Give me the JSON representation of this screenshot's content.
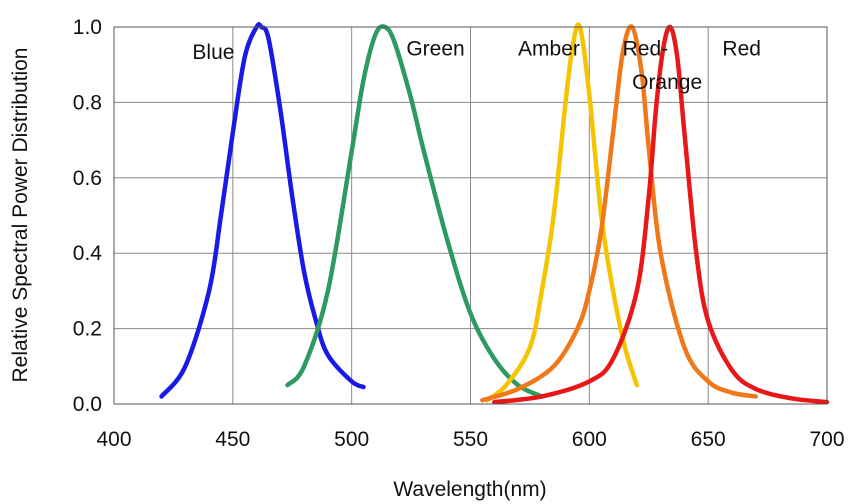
{
  "chart_data": {
    "type": "line",
    "title": "",
    "xlabel": "Wavelength(nm)",
    "ylabel": "Relative Spectral Power Distribution",
    "xlim": [
      400,
      700
    ],
    "ylim": [
      0,
      1.0
    ],
    "grid": true,
    "x_ticks": [
      400,
      450,
      500,
      550,
      600,
      650,
      700
    ],
    "x_tick_labels": [
      "400",
      "450",
      "500",
      "550",
      "600",
      "650",
      "700"
    ],
    "y_ticks": [
      0.0,
      0.2,
      0.4,
      0.6,
      0.8,
      1.0
    ],
    "y_tick_labels": [
      "0.0",
      "0.2",
      "0.4",
      "0.6",
      "0.8",
      "1.0"
    ],
    "series": [
      {
        "name": "Blue",
        "color": "#1a1ae6",
        "x": [
          420,
          430,
          440,
          445,
          450,
          455,
          460,
          462,
          465,
          470,
          475,
          480,
          485,
          490,
          500,
          505
        ],
        "y": [
          0.02,
          0.1,
          0.3,
          0.5,
          0.72,
          0.92,
          1.0,
          1.0,
          0.97,
          0.78,
          0.55,
          0.35,
          0.22,
          0.13,
          0.06,
          0.045
        ]
      },
      {
        "name": "Green",
        "color": "#2e9a62",
        "x": [
          473,
          480,
          490,
          500,
          505,
          510,
          514,
          518,
          525,
          530,
          540,
          550,
          560,
          570,
          580
        ],
        "y": [
          0.05,
          0.1,
          0.3,
          0.67,
          0.86,
          0.98,
          1.0,
          0.96,
          0.81,
          0.68,
          0.44,
          0.24,
          0.12,
          0.05,
          0.02
        ]
      },
      {
        "name": "Amber",
        "color": "#f5c400",
        "x": [
          557,
          565,
          575,
          580,
          585,
          590,
          593,
          596,
          600,
          605,
          610,
          615,
          620
        ],
        "y": [
          0.01,
          0.05,
          0.15,
          0.3,
          0.5,
          0.8,
          0.95,
          1.0,
          0.82,
          0.5,
          0.3,
          0.15,
          0.05
        ]
      },
      {
        "name": "Red-Orange",
        "color": "#f07818",
        "x": [
          555,
          570,
          585,
          595,
          600,
          605,
          610,
          614,
          618,
          622,
          625,
          630,
          640,
          650,
          660,
          670
        ],
        "y": [
          0.01,
          0.04,
          0.1,
          0.2,
          0.3,
          0.46,
          0.72,
          0.93,
          1.0,
          0.88,
          0.68,
          0.4,
          0.15,
          0.06,
          0.03,
          0.02
        ]
      },
      {
        "name": "Red",
        "color": "#e81818",
        "x": [
          560,
          580,
          600,
          610,
          620,
          625,
          628,
          631,
          634,
          637,
          640,
          645,
          650,
          660,
          670,
          685,
          700
        ],
        "y": [
          0.005,
          0.02,
          0.06,
          0.12,
          0.3,
          0.55,
          0.78,
          0.94,
          1.0,
          0.92,
          0.72,
          0.4,
          0.22,
          0.09,
          0.04,
          0.015,
          0.005
        ]
      }
    ],
    "annotations": [
      {
        "text": "Blue",
        "series": "Blue",
        "x": 433,
        "y": 0.915
      },
      {
        "text": "Green",
        "series": "Green",
        "x": 523,
        "y": 0.925
      },
      {
        "text": "Amber",
        "series": "Amber",
        "x": 570,
        "y": 0.925
      },
      {
        "text": "Red-",
        "series": "Red-Orange",
        "x": 614,
        "y": 0.925
      },
      {
        "text": "Orange",
        "series": "Red-Orange",
        "x": 618,
        "y": 0.835
      },
      {
        "text": "Red",
        "series": "Red",
        "x": 656,
        "y": 0.925
      }
    ]
  }
}
